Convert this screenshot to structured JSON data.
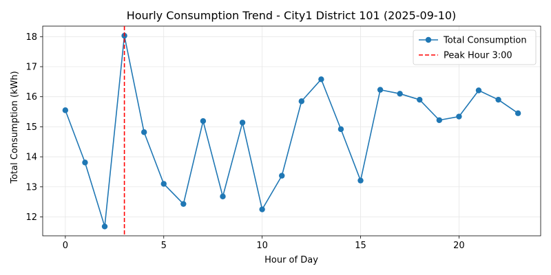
{
  "chart_data": {
    "type": "line",
    "title": "Hourly Consumption Trend - City1 District 101 (2025-09-10)",
    "xlabel": "Hour of Day",
    "ylabel": "Total Consumption (kWh)",
    "xlim": [
      -1.15,
      24.15
    ],
    "ylim": [
      11.37,
      18.35
    ],
    "xticks": [
      0,
      5,
      10,
      15,
      20
    ],
    "yticks": [
      12,
      13,
      14,
      15,
      16,
      17,
      18
    ],
    "grid": true,
    "legend_position": "top-right",
    "series": [
      {
        "name": "Total Consumption",
        "color": "#1f77b4",
        "x": [
          0,
          1,
          2,
          3,
          4,
          5,
          6,
          7,
          8,
          9,
          10,
          11,
          12,
          13,
          14,
          15,
          16,
          17,
          18,
          19,
          20,
          21,
          22,
          23
        ],
        "values": [
          15.55,
          13.81,
          11.68,
          18.03,
          14.82,
          13.1,
          12.43,
          15.19,
          12.68,
          15.14,
          12.25,
          13.37,
          15.85,
          16.58,
          14.92,
          13.21,
          16.23,
          16.1,
          15.9,
          15.22,
          15.34,
          16.21,
          15.9,
          15.45
        ]
      }
    ],
    "reference_lines": [
      {
        "name": "Peak Hour 3:00",
        "orientation": "vertical",
        "x": 3,
        "color": "#ff0000",
        "style": "dashed"
      }
    ]
  }
}
